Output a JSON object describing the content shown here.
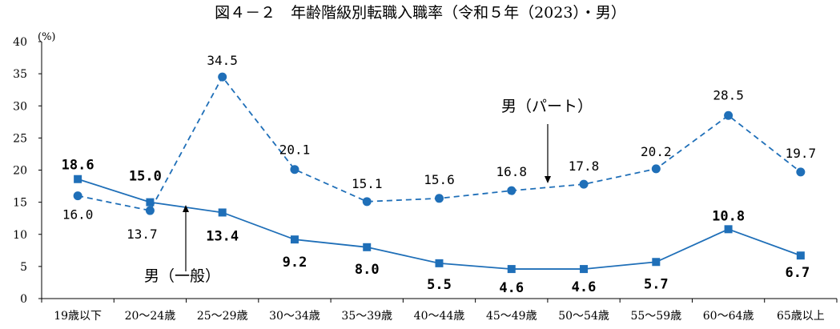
{
  "chart_data": {
    "type": "line",
    "title": "図４－２　年齢階級別転職入職率（令和５年（2023）・男）",
    "ylabel": "(%)",
    "ylim": [
      0,
      40
    ],
    "yticks": [
      "0",
      "5",
      "10",
      "15",
      "20",
      "25",
      "30",
      "35",
      "40"
    ],
    "grid": false,
    "categories": [
      "19歳以下",
      "20～24歳",
      "25～29歳",
      "30～34歳",
      "35～39歳",
      "40～44歳",
      "45～49歳",
      "50～54歳",
      "55～59歳",
      "60～64歳",
      "65歳以上"
    ],
    "series": [
      {
        "name": "男（一般）",
        "marker": "square",
        "line": "solid",
        "color": "#1f6fb8",
        "values": [
          18.6,
          15.0,
          13.4,
          9.2,
          8.0,
          5.5,
          4.6,
          4.6,
          5.7,
          10.8,
          6.7
        ],
        "labels": [
          "18.6",
          "15.0",
          "13.4",
          "9.2",
          "8.0",
          "5.5",
          "4.6",
          "4.6",
          "5.7",
          "10.8",
          "6.7"
        ]
      },
      {
        "name": "男（パート）",
        "marker": "circle",
        "line": "dashed",
        "color": "#1f6fb8",
        "values": [
          16.0,
          13.7,
          34.5,
          20.1,
          15.1,
          15.6,
          16.8,
          17.8,
          20.2,
          28.5,
          19.7
        ],
        "labels": [
          "16.0",
          "13.7",
          "34.5",
          "20.1",
          "15.1",
          "15.6",
          "16.8",
          "17.8",
          "20.2",
          "28.5",
          "19.7"
        ]
      }
    ]
  }
}
